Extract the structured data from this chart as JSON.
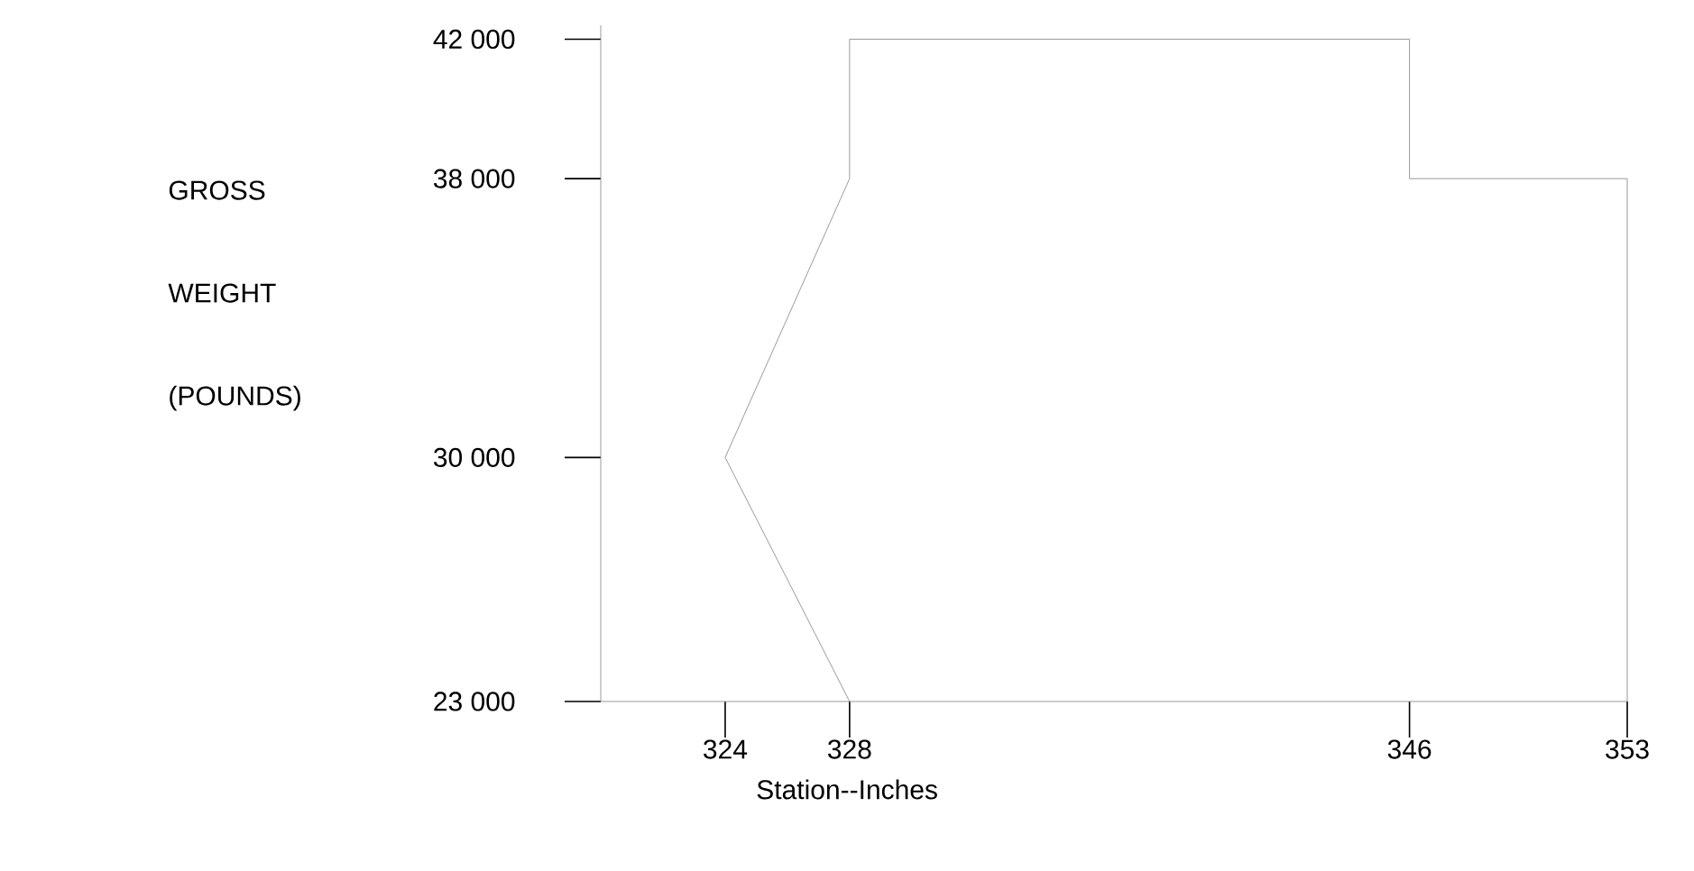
{
  "chart_data": {
    "type": "line",
    "xlabel": "Station--Inches",
    "ylabel": "GROSS WEIGHT (POUNDS)",
    "x": [
      328,
      324,
      328,
      328,
      346,
      346,
      353,
      353
    ],
    "series": [
      {
        "color": "#808080",
        "values": [
          23000,
          30000,
          38000,
          42000,
          42000,
          38000,
          38000,
          23000
        ]
      }
    ],
    "xlim": [
      320,
      353
    ],
    "ylim": [
      23000,
      42400
    ],
    "xticks": [
      324,
      328,
      346,
      353
    ],
    "yticks": [
      {
        "value": 23000,
        "label": "23 000"
      },
      {
        "value": 30000,
        "label": "30 000"
      },
      {
        "value": 38000,
        "label": "38 000"
      },
      {
        "value": 42000,
        "label": "42 000"
      }
    ],
    "marker": "none",
    "line_style": "solid"
  }
}
